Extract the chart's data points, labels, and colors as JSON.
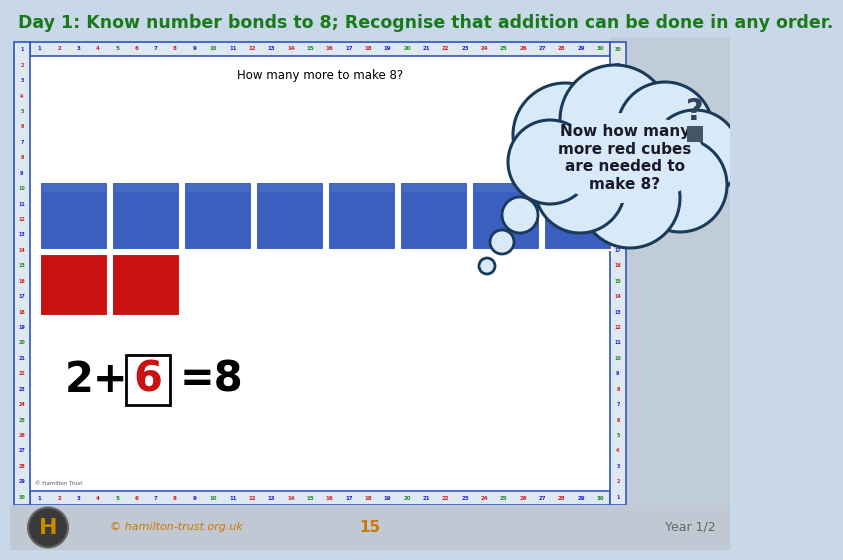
{
  "title": "Day 1: Know number bonds to 8; Recognise that addition can be done in any order.",
  "title_color": "#1a7a1a",
  "title_bg": "#c8d8e8",
  "title_fontsize": 12.5,
  "slide_bg": "#ffffff",
  "slide_border_color": "#3355bb",
  "slide_question": "How many more to make 8?",
  "blue_cubes": 8,
  "red_cubes": 2,
  "blue_color": "#3a5fbf",
  "red_color": "#cc1111",
  "equation_number_box_color": "#cc1111",
  "thought_bubble_text": "Now how many\nmore red cubes\nare needed to\nmake 8?",
  "thought_bubble_border": "#1a3a5a",
  "thought_bubble_fill": "#d8eaf8",
  "footer_bg": "#c0c8d4",
  "footer_link": "© hamilton-trust.org.uk",
  "footer_page": "15",
  "footer_year": "Year 1/2",
  "number_strip_bg": "#dde8f0",
  "number_strip_border": "#3355bb",
  "logo_circle_color": "#3a3a3a",
  "logo_h_color": "#cc8800",
  "right_bg_top": "#b8c8d8",
  "right_bg_bot": "#d0d8e0"
}
